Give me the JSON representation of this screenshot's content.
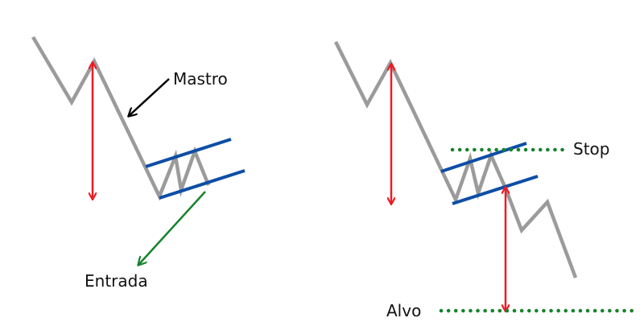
{
  "colors": {
    "price": "#9b9b9b",
    "measure": "#ee1c24",
    "flag": "#0d4ea6",
    "pointer": "#000000",
    "entry": "#17822e",
    "level": "#17822e",
    "text": "#111111"
  },
  "left_panel": {
    "pole_label": "Mastro",
    "entry_label": "Entrada"
  },
  "right_panel": {
    "stop_label": "Stop",
    "target_label": "Alvo"
  }
}
